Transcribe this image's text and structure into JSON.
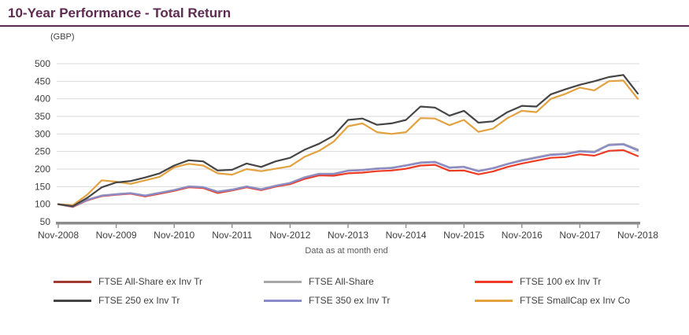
{
  "header": {
    "title": "10-Year Performance - Total Return",
    "currency_label": "(GBP)"
  },
  "footnote": "Data as at month end",
  "colors": {
    "title": "#5E2A51",
    "rule": "#5E2A51",
    "axis_text": "#404040",
    "grid": "#D9D9D9",
    "axis_bar": "#8C8C8C",
    "footnote": "#595959"
  },
  "chart_data": {
    "type": "line",
    "title": "10-Year Performance - Total Return",
    "ylabel": "(GBP)",
    "ylim": [
      50,
      500
    ],
    "yticks": [
      50,
      100,
      150,
      200,
      250,
      300,
      350,
      400,
      450,
      500
    ],
    "grid": true,
    "legend_position": "bottom",
    "x_tick_labels": [
      "Nov-2008",
      "Nov-2009",
      "Nov-2010",
      "Nov-2011",
      "Nov-2012",
      "Nov-2013",
      "Nov-2014",
      "Nov-2015",
      "Nov-2016",
      "Nov-2017",
      "Nov-2018"
    ],
    "x": [
      "Nov-2008",
      "Feb-2009",
      "May-2009",
      "Aug-2009",
      "Nov-2009",
      "Feb-2010",
      "May-2010",
      "Aug-2010",
      "Nov-2010",
      "Feb-2011",
      "May-2011",
      "Aug-2011",
      "Nov-2011",
      "Feb-2012",
      "May-2012",
      "Aug-2012",
      "Nov-2012",
      "Feb-2013",
      "May-2013",
      "Aug-2013",
      "Nov-2013",
      "Feb-2014",
      "May-2014",
      "Aug-2014",
      "Nov-2014",
      "Feb-2015",
      "May-2015",
      "Aug-2015",
      "Nov-2015",
      "Feb-2016",
      "May-2016",
      "Aug-2016",
      "Nov-2016",
      "Feb-2017",
      "May-2017",
      "Aug-2017",
      "Nov-2017",
      "Feb-2018",
      "May-2018",
      "Aug-2018",
      "Nov-2018"
    ],
    "draw_order": [
      0,
      1,
      2,
      4,
      5,
      3
    ],
    "series": [
      {
        "name": "FTSE All-Share ex Inv Tr",
        "color": "#A23B32",
        "values": [
          100,
          93,
          112,
          124,
          128,
          131,
          124,
          132,
          140,
          150,
          148,
          135,
          141,
          150,
          142,
          152,
          160,
          176,
          186,
          186,
          195,
          197,
          201,
          203,
          210,
          218,
          220,
          204,
          206,
          194,
          202,
          214,
          225,
          233,
          241,
          243,
          251,
          249,
          269,
          271,
          255
        ]
      },
      {
        "name": "FTSE All-Share",
        "color": "#A8A8A8",
        "values": [
          100,
          94,
          113,
          125,
          129,
          132,
          125,
          133,
          141,
          151,
          149,
          136,
          142,
          151,
          143,
          153,
          161,
          177,
          187,
          187,
          196,
          198,
          202,
          204,
          211,
          219,
          221,
          205,
          207,
          195,
          203,
          215,
          226,
          234,
          242,
          244,
          252,
          250,
          270,
          272,
          256
        ]
      },
      {
        "name": "FTSE 100 ex Inv Tr",
        "color": "#EE3B23",
        "values": [
          100,
          92,
          111,
          123,
          127,
          130,
          122,
          130,
          138,
          148,
          146,
          132,
          139,
          148,
          140,
          150,
          157,
          172,
          182,
          181,
          188,
          190,
          194,
          196,
          201,
          210,
          212,
          195,
          196,
          185,
          193,
          206,
          216,
          224,
          232,
          234,
          242,
          238,
          252,
          254,
          237
        ]
      },
      {
        "name": "FTSE 250 ex Inv Tr",
        "color": "#454545",
        "values": [
          100,
          94,
          118,
          148,
          162,
          166,
          176,
          188,
          210,
          225,
          222,
          196,
          198,
          216,
          206,
          222,
          232,
          255,
          272,
          295,
          340,
          344,
          326,
          330,
          340,
          378,
          375,
          352,
          366,
          332,
          336,
          362,
          380,
          378,
          413,
          427,
          440,
          450,
          462,
          468,
          415
        ]
      },
      {
        "name": "FTSE 350 ex Inv Tr",
        "color": "#8A8BC9",
        "values": [
          100,
          93,
          112,
          124,
          128,
          131,
          124,
          132,
          140,
          150,
          148,
          135,
          141,
          150,
          142,
          152,
          160,
          176,
          186,
          186,
          195,
          197,
          201,
          203,
          210,
          218,
          220,
          204,
          206,
          194,
          202,
          214,
          224,
          232,
          240,
          242,
          250,
          248,
          268,
          270,
          253
        ]
      },
      {
        "name": "FTSE SmallCap ex Inv Co",
        "color": "#E3A23F",
        "values": [
          100,
          97,
          127,
          168,
          164,
          158,
          168,
          178,
          205,
          215,
          210,
          188,
          184,
          200,
          194,
          201,
          208,
          235,
          252,
          278,
          322,
          330,
          305,
          300,
          305,
          345,
          344,
          325,
          340,
          306,
          315,
          345,
          366,
          362,
          400,
          414,
          432,
          424,
          450,
          452,
          400
        ]
      }
    ]
  }
}
